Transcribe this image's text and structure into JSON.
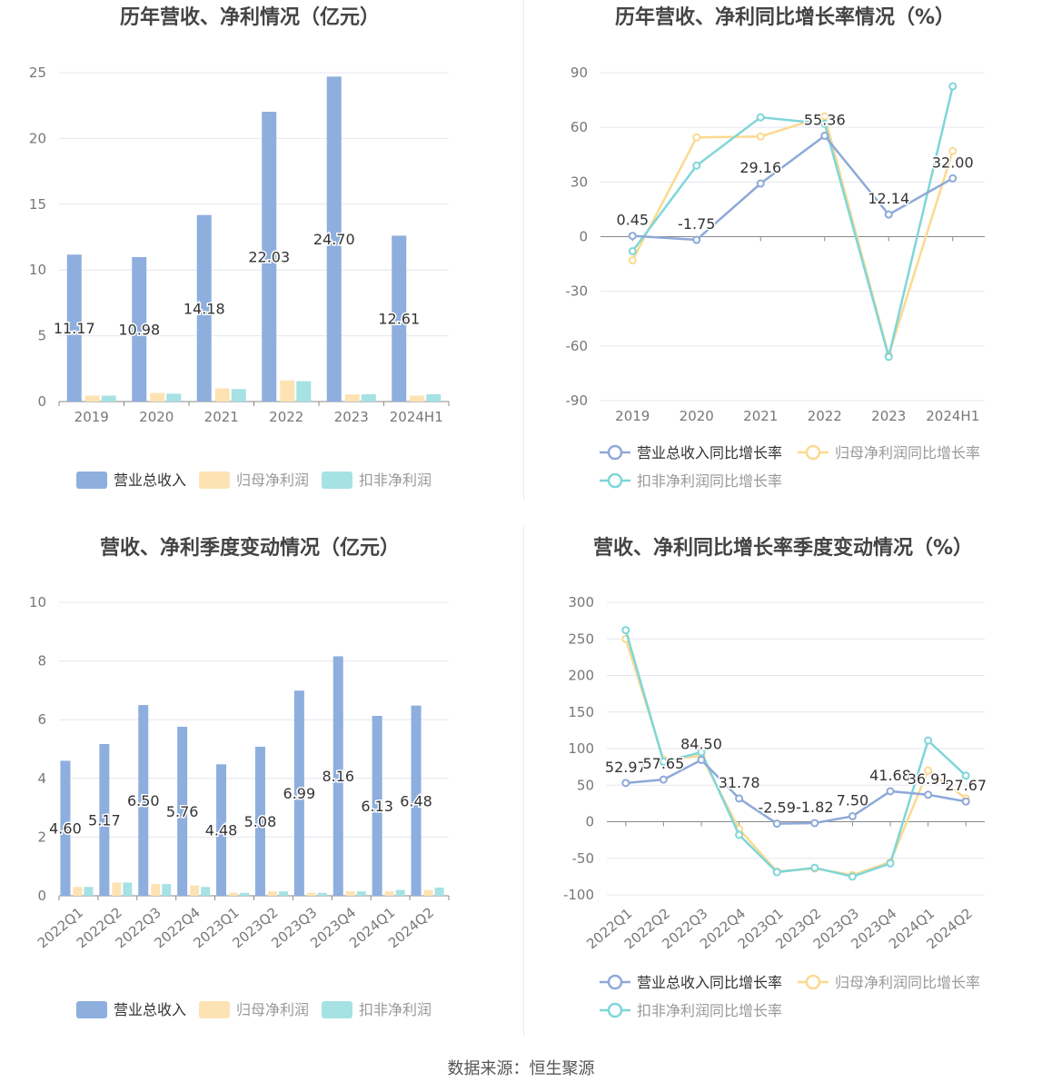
{
  "footer": "数据来源：恒生聚源",
  "legend_labels": {
    "bar": [
      "营业总收入",
      "归母净利润",
      "扣非净利润"
    ],
    "line": [
      "营业总收入同比增长率",
      "归母净利润同比增长率",
      "扣非净利润同比增长率"
    ]
  },
  "colors": {
    "revenue": "#8eaede",
    "net_profit": "#fde3b3",
    "deducted": "#a6e1e4",
    "line_revenue": "#8ea9d8",
    "line_net": "#fbd98f",
    "line_deducted": "#7fd6d9"
  },
  "chart_data": [
    {
      "type": "bar",
      "title": "历年营收、净利情况（亿元）",
      "categories": [
        "2019",
        "2020",
        "2021",
        "2022",
        "2023",
        "2024H1"
      ],
      "ylim": [
        0,
        25
      ],
      "yticks": [
        0,
        5,
        10,
        15,
        20,
        25
      ],
      "series": [
        {
          "name": "营业总收入",
          "values": [
            11.17,
            10.98,
            14.18,
            22.03,
            24.7,
            12.61
          ],
          "labels": [
            "11.17",
            "10.98",
            "14.18",
            "22.03",
            "24.70",
            "12.61"
          ]
        },
        {
          "name": "归母净利润",
          "values": [
            0.45,
            0.65,
            1.0,
            1.6,
            0.55,
            0.45
          ]
        },
        {
          "name": "扣非净利润",
          "values": [
            0.45,
            0.6,
            0.95,
            1.55,
            0.55,
            0.55
          ]
        }
      ],
      "legend": "bottom",
      "grid": true
    },
    {
      "type": "line",
      "title": "历年营收、净利同比增长率情况（%）",
      "categories": [
        "2019",
        "2020",
        "2021",
        "2022",
        "2023",
        "2024H1"
      ],
      "ylim": [
        -90,
        90
      ],
      "yticks": [
        -90,
        -60,
        -30,
        0,
        30,
        60,
        90
      ],
      "series": [
        {
          "name": "营业总收入同比增长率",
          "values": [
            0.45,
            -1.75,
            29.16,
            55.36,
            12.14,
            32.0
          ],
          "labels": [
            "0.45",
            "-1.75",
            "29.16",
            "55.36",
            "12.14",
            "32.00"
          ]
        },
        {
          "name": "归母净利润同比增长率",
          "values": [
            -13,
            54.5,
            55,
            66,
            -65,
            47
          ]
        },
        {
          "name": "扣非净利润同比增长率",
          "values": [
            -8,
            39,
            65.5,
            62,
            -66,
            82.5
          ]
        }
      ],
      "legend": "bottom",
      "grid": true
    },
    {
      "type": "bar",
      "title": "营收、净利季度变动情况（亿元）",
      "categories": [
        "2022Q1",
        "2022Q2",
        "2022Q3",
        "2022Q4",
        "2023Q1",
        "2023Q2",
        "2023Q3",
        "2023Q4",
        "2024Q1",
        "2024Q2"
      ],
      "ylim": [
        0,
        10
      ],
      "yticks": [
        0,
        2,
        4,
        6,
        8,
        10
      ],
      "series": [
        {
          "name": "营业总收入",
          "values": [
            4.6,
            5.17,
            6.5,
            5.76,
            4.48,
            5.08,
            6.99,
            8.16,
            6.13,
            6.48
          ],
          "labels": [
            "4.60",
            "5.17",
            "6.50",
            "5.76",
            "4.48",
            "5.08",
            "6.99",
            "8.16",
            "6.13",
            "6.48"
          ]
        },
        {
          "name": "归母净利润",
          "values": [
            0.3,
            0.45,
            0.4,
            0.35,
            0.1,
            0.15,
            0.1,
            0.15,
            0.15,
            0.2
          ]
        },
        {
          "name": "扣非净利润",
          "values": [
            0.3,
            0.45,
            0.4,
            0.3,
            0.1,
            0.15,
            0.1,
            0.15,
            0.2,
            0.28
          ]
        }
      ],
      "legend": "bottom",
      "grid": true
    },
    {
      "type": "line",
      "title": "营收、净利同比增长率季度变动情况（%）",
      "categories": [
        "2022Q1",
        "2022Q2",
        "2022Q3",
        "2022Q4",
        "2023Q1",
        "2023Q2",
        "2023Q3",
        "2023Q4",
        "2024Q1",
        "2024Q2"
      ],
      "ylim": [
        -100,
        300
      ],
      "yticks": [
        -100,
        -50,
        0,
        50,
        100,
        150,
        200,
        250,
        300
      ],
      "series": [
        {
          "name": "营业总收入同比增长率",
          "values": [
            52.97,
            57.65,
            84.5,
            31.78,
            -2.59,
            -1.82,
            7.5,
            41.68,
            36.91,
            27.67
          ],
          "labels": [
            "52.97",
            "57.65",
            "84.50",
            "31.78",
            "-2.59",
            "-1.82",
            "7.50",
            "41.68",
            "36.91",
            "27.67"
          ]
        },
        {
          "name": "归母净利润同比增长率",
          "values": [
            250,
            85,
            90,
            -10,
            -68,
            -64,
            -73,
            -55,
            70,
            32
          ]
        },
        {
          "name": "扣非净利润同比增长率",
          "values": [
            262,
            82,
            95,
            -18,
            -69,
            -63,
            -75,
            -57,
            111,
            63
          ]
        }
      ],
      "legend": "bottom",
      "grid": true
    }
  ]
}
